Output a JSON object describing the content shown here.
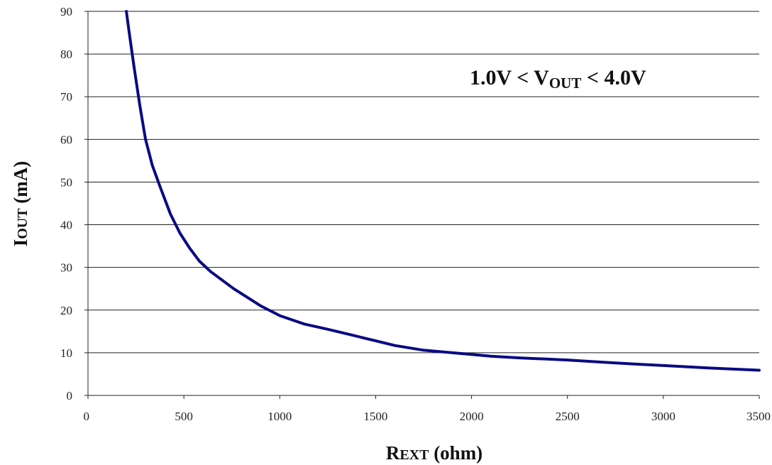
{
  "chart_data": {
    "type": "line",
    "title": "",
    "annotation": {
      "prefix": "1.0V < V",
      "subscript": "OUT",
      "suffix": " < 4.0V"
    },
    "xlabel": {
      "lead": "R",
      "small": "EXT",
      "tail": " (ohm)"
    },
    "ylabel": {
      "lead": "I",
      "small": "OUT",
      "tail": " (mA)"
    },
    "xlim": [
      0,
      3500
    ],
    "ylim": [
      0,
      90
    ],
    "xticks": [
      0,
      500,
      1000,
      1500,
      2000,
      2500,
      3000,
      3500
    ],
    "yticks": [
      0,
      10,
      20,
      30,
      40,
      50,
      60,
      70,
      80,
      90
    ],
    "grid": "horizontal",
    "series_color": "#0a0a82",
    "series": [
      {
        "x": [
          200,
          215,
          240,
          270,
          300,
          335,
          375,
          430,
          480,
          530,
          580,
          640,
          700,
          760,
          830,
          900,
          1000,
          1130,
          1250,
          1380,
          1500,
          1600,
          1750,
          1900,
          2000,
          2100,
          2250,
          2500,
          2750,
          3000,
          3250,
          3500
        ],
        "y": [
          90,
          85,
          77,
          68,
          60,
          54,
          49,
          42.5,
          38,
          34.5,
          31.5,
          29,
          27,
          25,
          23,
          21,
          18.7,
          16.7,
          15.5,
          14.1,
          12.8,
          11.7,
          10.6,
          10,
          9.6,
          9.2,
          8.8,
          8.3,
          7.6,
          7,
          6.4,
          5.9
        ]
      }
    ]
  }
}
